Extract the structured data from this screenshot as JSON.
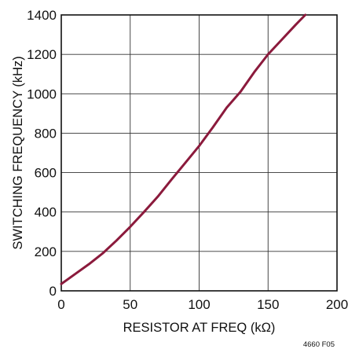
{
  "chart_data": {
    "type": "line",
    "title": "",
    "xlabel": "RESISTOR AT FREQ (kΩ)",
    "ylabel": "SWITCHING FREQUENCY (kHz)",
    "xlim": [
      0,
      200
    ],
    "ylim": [
      0,
      1400
    ],
    "x_ticks": [
      0,
      50,
      100,
      150,
      200
    ],
    "y_ticks": [
      0,
      200,
      400,
      600,
      800,
      1000,
      1200,
      1400
    ],
    "x_tick_labels": [
      "0",
      "50",
      "100",
      "150",
      "200"
    ],
    "y_tick_labels": [
      "0",
      "200",
      "400",
      "600",
      "800",
      "1000",
      "1200",
      "1400"
    ],
    "grid": true,
    "series": [
      {
        "color": "#8b1a3c",
        "x": [
          0,
          10,
          20,
          30,
          40,
          50,
          60,
          70,
          80,
          90,
          100,
          110,
          120,
          130,
          140,
          150,
          160,
          170,
          177
        ],
        "y": [
          35,
          85,
          135,
          190,
          255,
          325,
          400,
          478,
          565,
          650,
          735,
          830,
          930,
          1010,
          1110,
          1200,
          1275,
          1350,
          1400
        ]
      }
    ]
  },
  "figure_id": "4660 F05"
}
